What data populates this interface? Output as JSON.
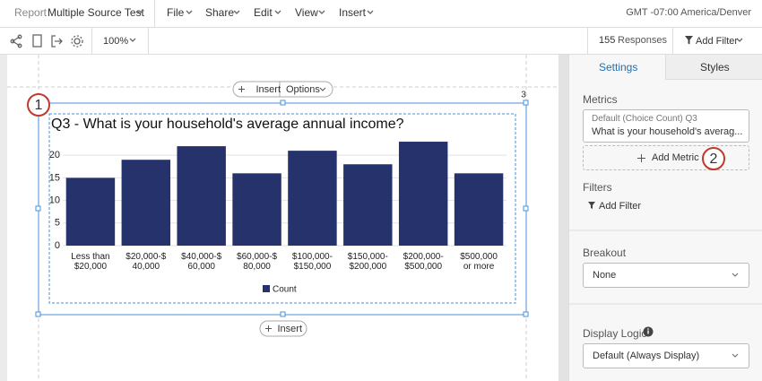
{
  "toolbar": {
    "report_label": "Report",
    "report_name": "Multiple Source Test",
    "menus": [
      "File",
      "Share",
      "Edit",
      "View",
      "Insert"
    ],
    "timezone": "GMT -07:00 America/Denver",
    "zoom": "100%",
    "responses_count": "155",
    "responses_label": "Responses",
    "add_filter": "Add Filter"
  },
  "canvas": {
    "insert_top": "Insert",
    "options": "Options",
    "insert_bottom": "Insert",
    "page_number": "3",
    "callouts": [
      "1",
      "2"
    ]
  },
  "chart_data": {
    "type": "bar",
    "title": "Q3 - What is your household's average annual income?",
    "categories": [
      "Less than\n$20,000",
      "$20,000-$\n40,000",
      "$40,000-$\n60,000",
      "$60,000-$\n80,000",
      "$100,000-\n$150,000",
      "$150,000-\n$200,000",
      "$200,000-\n$500,000",
      "$500,000\nor more"
    ],
    "series": [
      {
        "name": "Count",
        "color": "#25326b",
        "values": [
          15,
          19,
          22,
          16,
          21,
          18,
          23,
          16
        ]
      }
    ],
    "ylim": [
      0,
      24
    ],
    "yticks": [
      0,
      5,
      10,
      15,
      20
    ],
    "grid": true,
    "legend": "bottom"
  },
  "sidebar": {
    "tabs": [
      "Settings",
      "Styles"
    ],
    "metrics_label": "Metrics",
    "metric_line1": "Default (Choice Count) Q3",
    "metric_line2": "What is your household's averag...",
    "add_metric": "Add Metric",
    "filters_label": "Filters",
    "add_filter": "Add Filter",
    "breakout_label": "Breakout",
    "breakout_value": "None",
    "display_logic_label": "Display Logic",
    "display_logic_value": "Default (Always Display)"
  }
}
